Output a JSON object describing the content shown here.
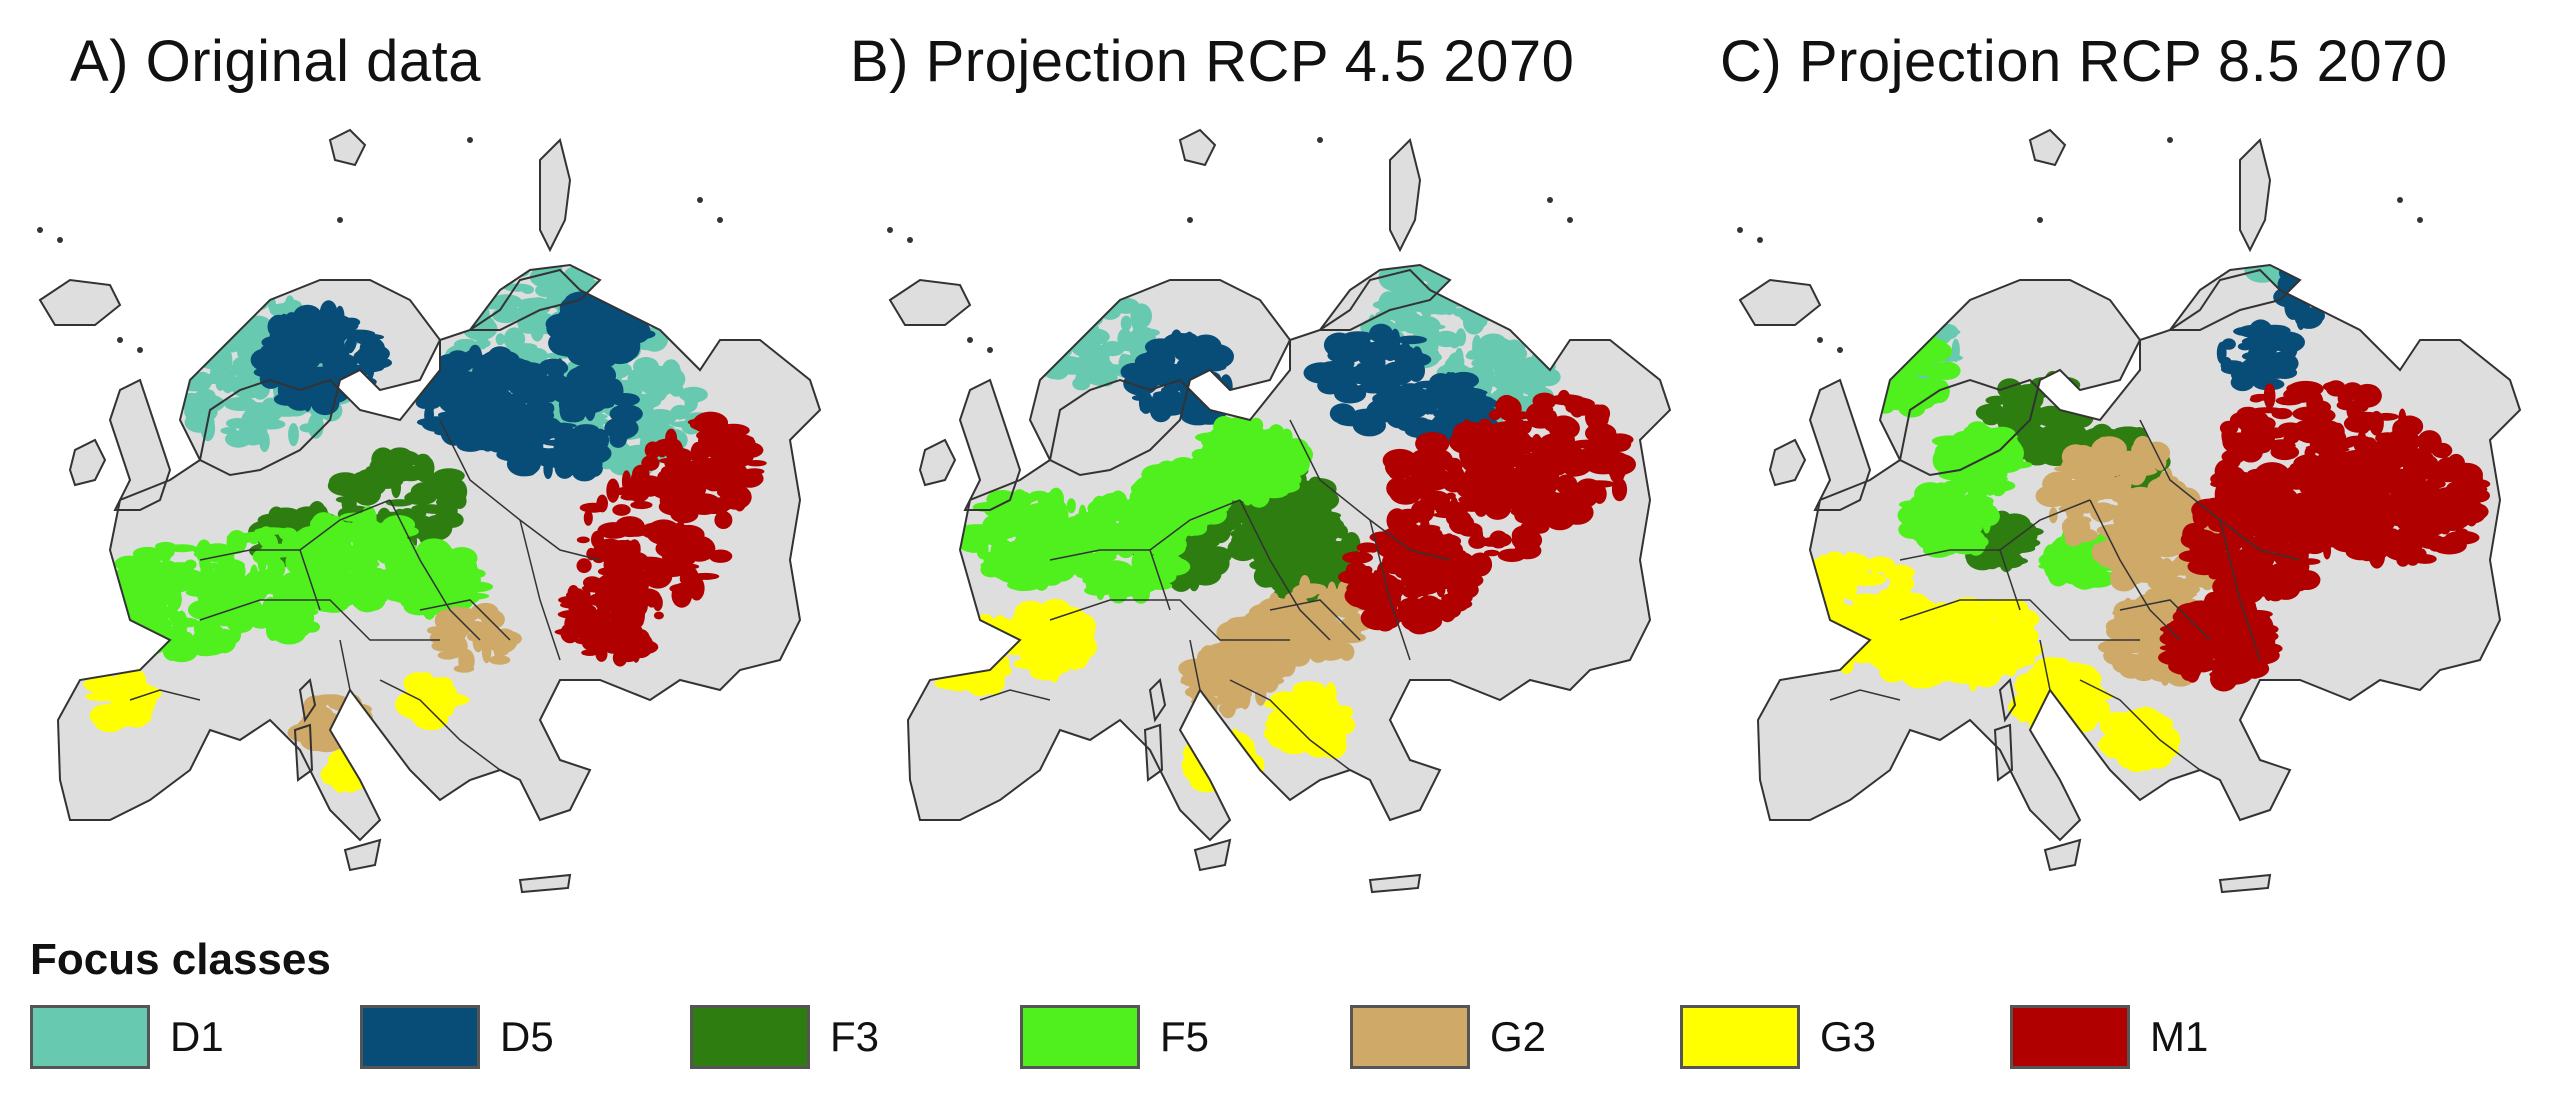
{
  "panels": [
    {
      "title": "A) Original data",
      "class_cover": {
        "D1": "high",
        "D5": "high",
        "F3": "medium",
        "F5": "high",
        "G2": "low",
        "G3": "low",
        "M1": "medium"
      }
    },
    {
      "title": "B) Projection RCP 4.5 2070",
      "class_cover": {
        "D1": "medium",
        "D5": "medium",
        "F3": "high",
        "F5": "high",
        "G2": "medium",
        "G3": "medium",
        "M1": "high"
      }
    },
    {
      "title": "C) Projection  RCP 8.5 2070",
      "class_cover": {
        "D1": "low",
        "D5": "low",
        "F3": "medium",
        "F5": "medium",
        "G2": "high",
        "G3": "high",
        "M1": "very high"
      }
    }
  ],
  "legend": {
    "title": "Focus classes",
    "items": [
      {
        "label": "D1",
        "color": "#66C9B0"
      },
      {
        "label": "D5",
        "color": "#084C78"
      },
      {
        "label": "F3",
        "color": "#2E7D10"
      },
      {
        "label": "F5",
        "color": "#4FF01E"
      },
      {
        "label": "G2",
        "color": "#CFA968"
      },
      {
        "label": "G3",
        "color": "#FFFF00"
      },
      {
        "label": "M1",
        "color": "#B00000"
      }
    ]
  },
  "map_colors": {
    "land": "#DEDEDE",
    "outline": "#333333",
    "water": "#FFFFFF"
  }
}
